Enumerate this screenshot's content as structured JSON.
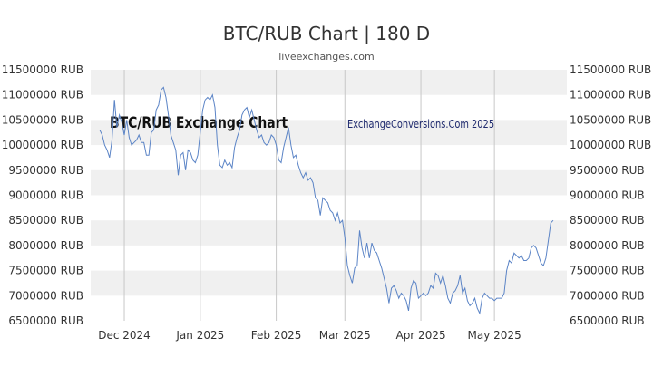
{
  "page": {
    "title": "BTC/RUB Chart | 180 D",
    "subtitle": "liveexchanges.com"
  },
  "colors": {
    "line": "#5b84c6",
    "band": "#f0f0f0",
    "grid": "#c8c8c8",
    "text": "#333333"
  },
  "chart_data": {
    "type": "line",
    "title": "BTC/RUB Chart | 180 D",
    "subtitle": "liveexchanges.com",
    "watermarks": [
      "BTC/RUB Exchange Chart",
      "ExchangeConversions.Com 2025"
    ],
    "y_ticks": [
      "11500000 RUB",
      "11000000 RUB",
      "10500000 RUB",
      "10000000 RUB",
      "9500000 RUB",
      "9000000 RUB",
      "8500000 RUB",
      "8000000 RUB",
      "7500000 RUB",
      "7000000 RUB",
      "6500000 RUB"
    ],
    "y_tick_values": [
      11500000,
      11000000,
      10500000,
      10000000,
      9500000,
      9000000,
      8500000,
      8000000,
      7500000,
      7000000,
      6500000
    ],
    "x_ticks": [
      "Dec 2024",
      "Jan 2025",
      "Feb 2025",
      "Mar 2025",
      "Apr 2025",
      "May 2025"
    ],
    "x_tick_dates": [
      "2024-12-01",
      "2025-01-01",
      "2025-02-01",
      "2025-03-01",
      "2025-04-01",
      "2025-05-01"
    ],
    "xlim": [
      "2024-11-21",
      "2025-05-25"
    ],
    "ylim": [
      6500000,
      11500000
    ],
    "grid": "horizontal bands",
    "series": [
      {
        "points": [
          [
            "2024-11-21",
            10300000
          ],
          [
            "2024-11-22",
            10200000
          ],
          [
            "2024-11-23",
            10000000
          ],
          [
            "2024-11-24",
            9900000
          ],
          [
            "2024-11-25",
            9750000
          ],
          [
            "2024-11-26",
            10100000
          ],
          [
            "2024-11-27",
            10900000
          ],
          [
            "2024-11-28",
            10350000
          ],
          [
            "2024-11-29",
            10600000
          ],
          [
            "2024-11-30",
            10450000
          ],
          [
            "2024-12-01",
            10200000
          ],
          [
            "2024-12-02",
            10500000
          ],
          [
            "2024-12-03",
            10150000
          ],
          [
            "2024-12-04",
            10000000
          ],
          [
            "2024-12-05",
            10050000
          ],
          [
            "2024-12-06",
            10100000
          ],
          [
            "2024-12-07",
            10200000
          ],
          [
            "2024-12-08",
            10050000
          ],
          [
            "2024-12-09",
            10050000
          ],
          [
            "2024-12-10",
            9800000
          ],
          [
            "2024-12-11",
            9800000
          ],
          [
            "2024-12-12",
            10250000
          ],
          [
            "2024-12-13",
            10300000
          ],
          [
            "2024-12-14",
            10700000
          ],
          [
            "2024-12-15",
            10800000
          ],
          [
            "2024-12-16",
            11100000
          ],
          [
            "2024-12-17",
            11150000
          ],
          [
            "2024-12-18",
            10950000
          ],
          [
            "2024-12-19",
            10600000
          ],
          [
            "2024-12-20",
            10200000
          ],
          [
            "2024-12-21",
            10050000
          ],
          [
            "2024-12-22",
            9900000
          ],
          [
            "2024-12-23",
            9400000
          ],
          [
            "2024-12-24",
            9800000
          ],
          [
            "2024-12-25",
            9850000
          ],
          [
            "2024-12-26",
            9500000
          ],
          [
            "2024-12-27",
            9900000
          ],
          [
            "2024-12-28",
            9850000
          ],
          [
            "2024-12-29",
            9700000
          ],
          [
            "2024-12-30",
            9650000
          ],
          [
            "2024-12-31",
            9800000
          ],
          [
            "2025-01-01",
            10250000
          ],
          [
            "2025-01-02",
            10700000
          ],
          [
            "2025-01-03",
            10900000
          ],
          [
            "2025-01-04",
            10950000
          ],
          [
            "2025-01-05",
            10900000
          ],
          [
            "2025-01-06",
            11000000
          ],
          [
            "2025-01-07",
            10750000
          ],
          [
            "2025-01-08",
            10000000
          ],
          [
            "2025-01-09",
            9600000
          ],
          [
            "2025-01-10",
            9550000
          ],
          [
            "2025-01-11",
            9700000
          ],
          [
            "2025-01-12",
            9600000
          ],
          [
            "2025-01-13",
            9650000
          ],
          [
            "2025-01-14",
            9550000
          ],
          [
            "2025-01-15",
            9950000
          ],
          [
            "2025-01-16",
            10150000
          ],
          [
            "2025-01-17",
            10300000
          ],
          [
            "2025-01-18",
            10600000
          ],
          [
            "2025-01-19",
            10700000
          ],
          [
            "2025-01-20",
            10750000
          ],
          [
            "2025-01-21",
            10550000
          ],
          [
            "2025-01-22",
            10700000
          ],
          [
            "2025-01-23",
            10500000
          ],
          [
            "2025-01-24",
            10300000
          ],
          [
            "2025-01-25",
            10150000
          ],
          [
            "2025-01-26",
            10200000
          ],
          [
            "2025-01-27",
            10050000
          ],
          [
            "2025-01-28",
            10000000
          ],
          [
            "2025-01-29",
            10050000
          ],
          [
            "2025-01-30",
            10200000
          ],
          [
            "2025-01-31",
            10150000
          ],
          [
            "2025-02-01",
            10000000
          ],
          [
            "2025-02-02",
            9700000
          ],
          [
            "2025-02-03",
            9650000
          ],
          [
            "2025-02-04",
            9950000
          ],
          [
            "2025-02-05",
            10150000
          ],
          [
            "2025-02-06",
            10350000
          ],
          [
            "2025-02-07",
            10000000
          ],
          [
            "2025-02-08",
            9750000
          ],
          [
            "2025-02-09",
            9800000
          ],
          [
            "2025-02-10",
            9600000
          ],
          [
            "2025-02-11",
            9450000
          ],
          [
            "2025-02-12",
            9350000
          ],
          [
            "2025-02-13",
            9450000
          ],
          [
            "2025-02-14",
            9300000
          ],
          [
            "2025-02-15",
            9350000
          ],
          [
            "2025-02-16",
            9250000
          ],
          [
            "2025-02-17",
            8950000
          ],
          [
            "2025-02-18",
            8900000
          ],
          [
            "2025-02-19",
            8600000
          ],
          [
            "2025-02-20",
            8950000
          ],
          [
            "2025-02-21",
            8900000
          ],
          [
            "2025-02-22",
            8850000
          ],
          [
            "2025-02-23",
            8700000
          ],
          [
            "2025-02-24",
            8650000
          ],
          [
            "2025-02-25",
            8500000
          ],
          [
            "2025-02-26",
            8650000
          ],
          [
            "2025-02-27",
            8450000
          ],
          [
            "2025-02-28",
            8500000
          ],
          [
            "2025-03-01",
            8150000
          ],
          [
            "2025-03-02",
            7600000
          ],
          [
            "2025-03-03",
            7400000
          ],
          [
            "2025-03-04",
            7250000
          ],
          [
            "2025-03-05",
            7550000
          ],
          [
            "2025-03-06",
            7600000
          ],
          [
            "2025-03-07",
            8300000
          ],
          [
            "2025-03-08",
            7950000
          ],
          [
            "2025-03-09",
            7750000
          ],
          [
            "2025-03-10",
            8050000
          ],
          [
            "2025-03-11",
            7750000
          ],
          [
            "2025-03-12",
            8050000
          ],
          [
            "2025-03-13",
            7900000
          ],
          [
            "2025-03-14",
            7850000
          ],
          [
            "2025-03-15",
            7700000
          ],
          [
            "2025-03-16",
            7550000
          ],
          [
            "2025-03-17",
            7350000
          ],
          [
            "2025-03-18",
            7150000
          ],
          [
            "2025-03-19",
            6850000
          ],
          [
            "2025-03-20",
            7150000
          ],
          [
            "2025-03-21",
            7200000
          ],
          [
            "2025-03-22",
            7100000
          ],
          [
            "2025-03-23",
            6950000
          ],
          [
            "2025-03-24",
            7050000
          ],
          [
            "2025-03-25",
            7000000
          ],
          [
            "2025-03-26",
            6900000
          ],
          [
            "2025-03-27",
            6700000
          ],
          [
            "2025-03-28",
            7150000
          ],
          [
            "2025-03-29",
            7300000
          ],
          [
            "2025-03-30",
            7250000
          ],
          [
            "2025-03-31",
            6950000
          ],
          [
            "2025-04-01",
            7000000
          ],
          [
            "2025-04-02",
            7050000
          ],
          [
            "2025-04-03",
            7000000
          ],
          [
            "2025-04-04",
            7050000
          ],
          [
            "2025-04-05",
            7200000
          ],
          [
            "2025-04-06",
            7150000
          ],
          [
            "2025-04-07",
            7450000
          ],
          [
            "2025-04-08",
            7400000
          ],
          [
            "2025-04-09",
            7250000
          ],
          [
            "2025-04-10",
            7400000
          ],
          [
            "2025-04-11",
            7200000
          ],
          [
            "2025-04-12",
            6950000
          ],
          [
            "2025-04-13",
            6850000
          ],
          [
            "2025-04-14",
            7050000
          ],
          [
            "2025-04-15",
            7100000
          ],
          [
            "2025-04-16",
            7200000
          ],
          [
            "2025-04-17",
            7400000
          ],
          [
            "2025-04-18",
            7050000
          ],
          [
            "2025-04-19",
            7150000
          ],
          [
            "2025-04-20",
            6900000
          ],
          [
            "2025-04-21",
            6800000
          ],
          [
            "2025-04-22",
            6850000
          ],
          [
            "2025-04-23",
            6950000
          ],
          [
            "2025-04-24",
            6750000
          ],
          [
            "2025-04-25",
            6650000
          ],
          [
            "2025-04-26",
            6950000
          ],
          [
            "2025-04-27",
            7050000
          ],
          [
            "2025-04-28",
            7000000
          ],
          [
            "2025-04-29",
            6950000
          ],
          [
            "2025-04-30",
            6950000
          ],
          [
            "2025-05-01",
            6900000
          ],
          [
            "2025-05-02",
            6950000
          ],
          [
            "2025-05-03",
            6950000
          ],
          [
            "2025-05-04",
            6950000
          ],
          [
            "2025-05-05",
            7050000
          ],
          [
            "2025-05-06",
            7500000
          ],
          [
            "2025-05-07",
            7700000
          ],
          [
            "2025-05-08",
            7650000
          ],
          [
            "2025-05-09",
            7850000
          ],
          [
            "2025-05-10",
            7800000
          ],
          [
            "2025-05-11",
            7750000
          ],
          [
            "2025-05-12",
            7800000
          ],
          [
            "2025-05-13",
            7700000
          ],
          [
            "2025-05-14",
            7700000
          ],
          [
            "2025-05-15",
            7750000
          ],
          [
            "2025-05-16",
            7950000
          ],
          [
            "2025-05-17",
            8000000
          ],
          [
            "2025-05-18",
            7950000
          ],
          [
            "2025-05-19",
            7800000
          ],
          [
            "2025-05-20",
            7650000
          ],
          [
            "2025-05-21",
            7600000
          ],
          [
            "2025-05-22",
            7750000
          ],
          [
            "2025-05-23",
            8100000
          ],
          [
            "2025-05-24",
            8450000
          ],
          [
            "2025-05-25",
            8500000
          ]
        ]
      }
    ]
  }
}
